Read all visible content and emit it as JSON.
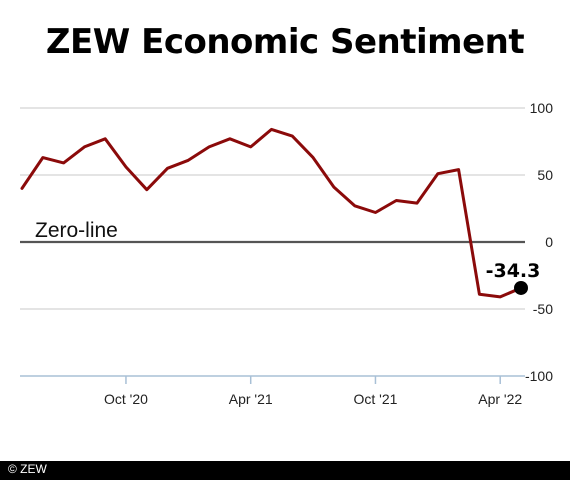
{
  "title": "ZEW Economic Sentiment",
  "credit": "© ZEW",
  "chart_data": {
    "type": "line",
    "title": "ZEW Economic Sentiment",
    "x": [
      "2020-05",
      "2020-06",
      "2020-07",
      "2020-08",
      "2020-09",
      "2020-10",
      "2020-11",
      "2020-12",
      "2021-01",
      "2021-02",
      "2021-03",
      "2021-04",
      "2021-05",
      "2021-06",
      "2021-07",
      "2021-08",
      "2021-09",
      "2021-10",
      "2021-11",
      "2021-12",
      "2022-01",
      "2022-02",
      "2022-03",
      "2022-04",
      "2022-05"
    ],
    "series": [
      {
        "values": [
          40,
          63,
          59,
          71,
          77,
          56,
          39,
          55,
          61,
          71,
          77,
          71,
          84,
          79,
          63,
          41,
          27,
          22,
          31,
          29,
          51,
          54,
          -39,
          -41,
          -34.3
        ],
        "color": "#8b0a0a"
      }
    ],
    "ylim": [
      -100,
      100
    ],
    "yticks": [
      100,
      50,
      0,
      -50,
      -100
    ],
    "ytick_labels": [
      "100",
      "50",
      "0",
      "-50",
      "-100"
    ],
    "xtick_labels": [
      {
        "date": "2020-10",
        "label": "Oct '20"
      },
      {
        "date": "2021-04",
        "label": "Apr '21"
      },
      {
        "date": "2021-10",
        "label": "Oct '21"
      },
      {
        "date": "2022-04",
        "label": "Apr '22"
      }
    ],
    "zero_line_label": "Zero-line",
    "last_value_label": "-34.3",
    "grid": true,
    "axis_color": "#a8c0d6",
    "grid_color": "#c8c8c8"
  }
}
